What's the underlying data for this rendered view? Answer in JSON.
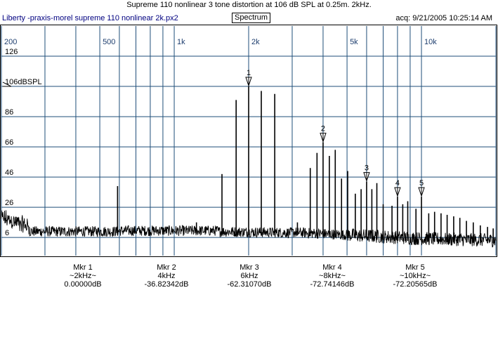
{
  "header": {
    "title": "Supreme 110 nonlinear 3 tone distortion at 106 dB SPL at 0.25m. 2kHz.",
    "app_name": "Liberty -praxis-",
    "file_name": "morel supreme 110 nonlinear 2k.px2",
    "mode_button": "Spectrum",
    "acquired": "acq: 9/21/2005 10:25:14 AM"
  },
  "chart_data": {
    "type": "line",
    "title": "",
    "xlabel": "",
    "ylabel": "",
    "x_scale": "log",
    "xlim": [
      200,
      20000
    ],
    "ylim": [
      -6,
      146
    ],
    "grid": true,
    "x_ticks": [
      {
        "value": 200,
        "label": "200"
      },
      {
        "value": 500,
        "label": "500"
      },
      {
        "value": 1000,
        "label": "1k"
      },
      {
        "value": 2000,
        "label": "2k"
      },
      {
        "value": 5000,
        "label": "5k"
      },
      {
        "value": 10000,
        "label": "10k"
      }
    ],
    "x_minor_grid": [
      300,
      400,
      600,
      700,
      800,
      900,
      3000,
      4000,
      6000,
      7000,
      8000,
      9000,
      20000
    ],
    "y_ticks": [
      {
        "value": 126,
        "label": "126"
      },
      {
        "value": 106,
        "label": "106dBSPL"
      },
      {
        "value": 86,
        "label": "86"
      },
      {
        "value": 66,
        "label": "66"
      },
      {
        "value": 46,
        "label": "46"
      },
      {
        "value": 26,
        "label": "26"
      },
      {
        "value": 6,
        "label": "6"
      }
    ],
    "reference_level": 106,
    "colors": {
      "trace": "#000000",
      "grid": "#1f4e79",
      "background": "#ffffff"
    },
    "peaks": [
      {
        "x": 590,
        "y": 40
      },
      {
        "x": 1230,
        "y": 16
      },
      {
        "x": 1560,
        "y": 48
      },
      {
        "x": 1780,
        "y": 97
      },
      {
        "x": 2000,
        "y": 106
      },
      {
        "x": 2250,
        "y": 103
      },
      {
        "x": 2550,
        "y": 101
      },
      {
        "x": 3150,
        "y": 16
      },
      {
        "x": 3550,
        "y": 52
      },
      {
        "x": 3780,
        "y": 62
      },
      {
        "x": 4000,
        "y": 69
      },
      {
        "x": 4240,
        "y": 60
      },
      {
        "x": 4480,
        "y": 64
      },
      {
        "x": 4750,
        "y": 45
      },
      {
        "x": 5030,
        "y": 50
      },
      {
        "x": 5400,
        "y": 35
      },
      {
        "x": 5700,
        "y": 38
      },
      {
        "x": 6000,
        "y": 43
      },
      {
        "x": 6300,
        "y": 38
      },
      {
        "x": 6600,
        "y": 42
      },
      {
        "x": 7000,
        "y": 28
      },
      {
        "x": 7600,
        "y": 27
      },
      {
        "x": 8000,
        "y": 33
      },
      {
        "x": 8400,
        "y": 28
      },
      {
        "x": 8800,
        "y": 30
      },
      {
        "x": 9500,
        "y": 25
      },
      {
        "x": 10000,
        "y": 33
      },
      {
        "x": 10700,
        "y": 22
      },
      {
        "x": 11300,
        "y": 23
      },
      {
        "x": 12000,
        "y": 22
      },
      {
        "x": 12700,
        "y": 21
      },
      {
        "x": 13500,
        "y": 20
      },
      {
        "x": 14300,
        "y": 19
      },
      {
        "x": 15200,
        "y": 17
      },
      {
        "x": 16200,
        "y": 16
      },
      {
        "x": 17300,
        "y": 14
      },
      {
        "x": 18500,
        "y": 13
      },
      {
        "x": 19500,
        "y": 12
      }
    ],
    "markers": [
      {
        "id": "1",
        "x": 2000,
        "y": 106,
        "label": "Mkr 1",
        "freq": "~2kHz~",
        "level": "0.00000dB"
      },
      {
        "id": "2",
        "x": 4000,
        "y": 69,
        "label": "Mkr 2",
        "freq": "4kHz",
        "level": "-36.82342dB"
      },
      {
        "id": "3",
        "x": 6000,
        "y": 43,
        "label": "Mkr 3",
        "freq": "6kHz",
        "level": "-62.31070dB"
      },
      {
        "id": "4",
        "x": 8000,
        "y": 33,
        "label": "Mkr 4",
        "freq": "~8kHz~",
        "level": "-72.74146dB"
      },
      {
        "id": "5",
        "x": 10000,
        "y": 33,
        "label": "Mkr 5",
        "freq": "~10kHz~",
        "level": "-72.20565dB"
      }
    ]
  }
}
